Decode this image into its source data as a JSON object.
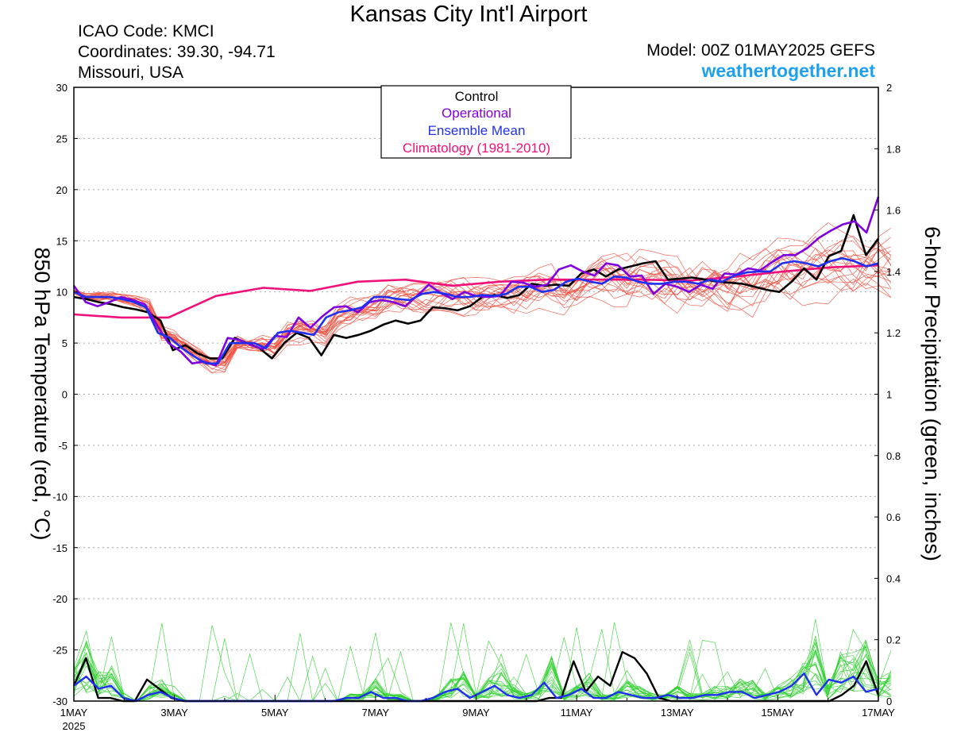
{
  "header": {
    "title": "Kansas City Int'l Airport",
    "icao": "ICAO Code: KMCI",
    "coordinates": "Coordinates: 39.30, -94.71",
    "region": "Missouri, USA",
    "model": "Model: 00Z 01MAY2025 GEFS",
    "site": "weathertogether.net"
  },
  "colors": {
    "control": "#000000",
    "operational": "#8000e0",
    "ensemble_mean": "#2030f0",
    "climatology": "#f0107a",
    "members_temp": "#f04a3a",
    "members_precip": "#30d030",
    "site": "#1ea0f0"
  },
  "chart_data": {
    "type": "line",
    "xlabel": "",
    "x_ticks": [
      "1MAY",
      "3MAY",
      "5MAY",
      "7MAY",
      "9MAY",
      "11MAY",
      "13MAY",
      "15MAY",
      "17MAY"
    ],
    "x_year_label": "2025",
    "xlim_days": [
      0,
      16
    ],
    "step_hours": 6,
    "left_axis": {
      "label": "850 hPa Temperature (red, °C)",
      "ylim": [
        -30,
        30
      ],
      "ticks": [
        "30",
        "25",
        "20",
        "15",
        "10",
        "5",
        "0",
        "-5",
        "-10",
        "-15",
        "-20",
        "-25",
        "-30"
      ]
    },
    "right_axis": {
      "label": "6-hour Precipitation (green, inches)",
      "ylim": [
        0,
        2
      ],
      "ticks": [
        "2",
        "1.8",
        "1.6",
        "1.4",
        "1.2",
        "1",
        "0.8",
        "0.6",
        "0.4",
        "0.2",
        "0"
      ]
    },
    "legend": {
      "placement": "top-center",
      "entries": [
        "Control",
        "Operational",
        "Ensemble Mean",
        "Climatology (1981-2010)"
      ]
    },
    "grid": true,
    "series": [
      {
        "name": "Control",
        "axis": "left",
        "values": [
          9.5,
          9.3,
          9.0,
          8.8,
          8.5,
          8.3,
          8.0,
          7.2,
          4.3,
          4.8,
          4.0,
          3.5,
          3.5,
          5.5,
          5.0,
          4.5,
          3.5,
          5.0,
          6.0,
          5.5,
          3.8,
          5.8,
          5.5,
          5.8,
          6.2,
          6.8,
          7.2,
          6.9,
          7.2,
          8.5,
          8.4,
          8.2,
          8.6,
          9.5,
          9.7,
          9.4,
          9.7,
          10.8,
          10.6,
          10.7,
          10.6,
          11.8,
          12.2,
          11.5,
          12.2,
          12.5,
          12.8,
          13.0,
          11.2,
          11.3,
          11.4,
          11.2,
          11.0,
          10.9,
          10.8,
          10.5,
          10.2,
          10.0,
          11.0,
          12.3,
          11.2,
          13.5,
          14.0,
          17.5,
          13.6,
          15.2
        ]
      },
      {
        "name": "Operational",
        "axis": "left",
        "values": [
          10.6,
          9.0,
          8.6,
          9.0,
          9.5,
          9.2,
          8.8,
          6.8,
          5.0,
          4.2,
          3.0,
          3.2,
          2.8,
          5.5,
          5.3,
          4.8,
          4.4,
          5.7,
          5.6,
          7.5,
          6.5,
          7.6,
          8.5,
          8.6,
          8.0,
          9.0,
          9.2,
          9.0,
          8.6,
          9.6,
          10.7,
          9.9,
          9.3,
          10.0,
          9.6,
          9.5,
          9.6,
          11.0,
          10.9,
          10.5,
          10.7,
          12.2,
          12.6,
          12.0,
          11.6,
          12.8,
          12.6,
          11.5,
          11.6,
          9.8,
          10.8,
          10.5,
          10.0,
          10.7,
          10.3,
          11.8,
          11.7,
          12.3,
          12.1,
          12.9,
          13.6,
          13.6,
          14.3,
          15.3,
          16.0,
          16.6,
          16.9,
          15.8,
          19.3
        ]
      },
      {
        "name": "Ensemble Mean",
        "axis": "left",
        "values": [
          10.0,
          9.5,
          9.5,
          9.5,
          9.3,
          9.0,
          8.5,
          6.0,
          5.5,
          4.5,
          3.7,
          3.0,
          3.0,
          5.0,
          5.0,
          5.0,
          4.5,
          6.0,
          6.2,
          6.0,
          5.8,
          7.5,
          8.0,
          8.2,
          8.5,
          9.5,
          9.5,
          9.3,
          9.2,
          9.8,
          10.0,
          9.8,
          9.5,
          9.5,
          9.7,
          9.6,
          9.8,
          10.5,
          10.5,
          10.0,
          10.2,
          11.0,
          11.3,
          11.0,
          10.8,
          11.5,
          11.4,
          11.0,
          10.8,
          10.8,
          11.0,
          11.0,
          10.8,
          11.2,
          11.0,
          11.6,
          11.9,
          12.0,
          12.0,
          12.8,
          13.0,
          12.8,
          12.5,
          13.0,
          13.3,
          13.0,
          12.5,
          12.8
        ]
      },
      {
        "name": "Climatology (1981-2010)",
        "axis": "left",
        "values": [
          7.8,
          7.5,
          7.5,
          9.6,
          10.4,
          10.1,
          11.0,
          11.2,
          10.6,
          11.0,
          11.2,
          11.2,
          11.2,
          11.1,
          11.5,
          12.0,
          12.4,
          12.6
        ]
      },
      {
        "name": "Control precipitation",
        "axis": "right",
        "values": [
          0.05,
          0.14,
          0.01,
          0.01,
          0,
          0,
          0.07,
          0.04,
          0.01,
          0,
          0,
          0,
          0,
          0,
          0,
          0,
          0,
          0,
          0,
          0,
          0,
          0,
          0,
          0,
          0,
          0,
          0,
          0,
          0,
          0,
          0,
          0,
          0,
          0,
          0,
          0,
          0,
          0,
          0,
          0.01,
          0.01,
          0.13,
          0.03,
          0.08,
          0.05,
          0.16,
          0.14,
          0.09,
          0.01,
          0,
          0,
          0,
          0,
          0,
          0,
          0,
          0,
          0,
          0,
          0,
          0,
          0,
          0,
          0.02,
          0.05,
          0.13,
          0.02
        ]
      },
      {
        "name": "Ensemble mean precipitation",
        "axis": "right",
        "values": [
          0.05,
          0.08,
          0.04,
          0.05,
          0.01,
          0,
          0.02,
          0.03,
          0.01,
          0,
          0,
          0,
          0,
          0,
          0,
          0,
          0,
          0,
          0,
          0,
          0,
          0,
          0.01,
          0.01,
          0.03,
          0.01,
          0.01,
          0,
          0,
          0.01,
          0.03,
          0.04,
          0.01,
          0.03,
          0.05,
          0.02,
          0.01,
          0.02,
          0.06,
          0.01,
          0.02,
          0.04,
          0.01,
          0.01,
          0.03,
          0.02,
          0.01,
          0.01,
          0.02,
          0.01,
          0.01,
          0.02,
          0.02,
          0.03,
          0.03,
          0.01,
          0.02,
          0.03,
          0.05,
          0.09,
          0.02,
          0.07,
          0.06,
          0.08,
          0.03,
          0.04
        ]
      }
    ]
  }
}
